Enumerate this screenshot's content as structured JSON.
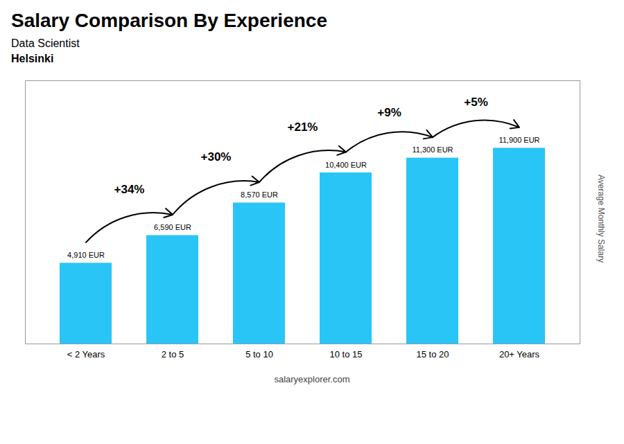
{
  "chart_data": {
    "type": "bar",
    "title": "Salary Comparison By Experience",
    "subtitle": [
      "Data Scientist",
      "Helsinki"
    ],
    "y_label": "Average Monthly Salary",
    "caption": "salaryexplorer.com",
    "categories": [
      "< 2 Years",
      "2 to 5",
      "5 to 10",
      "10 to 15",
      "15 to 20",
      "20+ Years"
    ],
    "values": [
      4910,
      6590,
      8570,
      10400,
      11300,
      11900
    ],
    "value_labels": [
      "4,910 EUR",
      "6,590 EUR",
      "8,570 EUR",
      "10,400 EUR",
      "11,300 EUR",
      "11,900 EUR"
    ],
    "data_labels": true,
    "annotations": [
      "+34%",
      "+30%",
      "+21%",
      "+9%",
      "+5%"
    ],
    "color": "#29c5f6",
    "ylim": [
      0,
      16000
    ],
    "tick_labels": "x",
    "grid": false
  }
}
